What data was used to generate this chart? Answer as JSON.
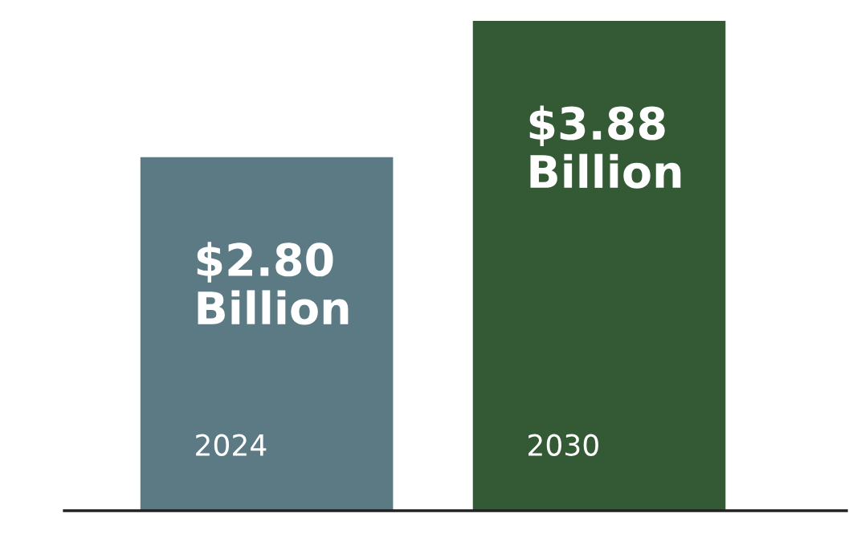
{
  "chart_data": {
    "type": "bar",
    "categories": [
      "2024",
      "2030"
    ],
    "values": [
      2.8,
      3.88
    ],
    "colors": [
      "#5b7a84",
      "#345a35"
    ],
    "value_labels": [
      "$2.80 Billion",
      "$3.88 Billion"
    ]
  }
}
